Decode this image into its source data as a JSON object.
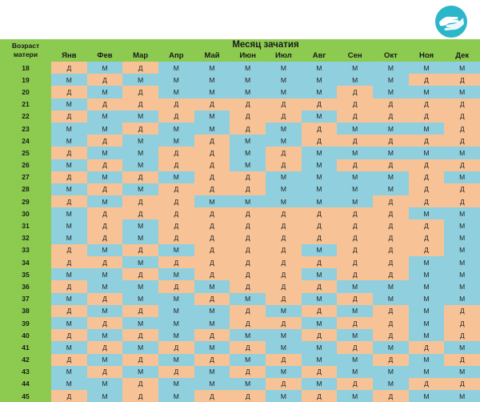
{
  "colors": {
    "header_bg": "#8CCB4F",
    "boy_cell": "#8FCFDE",
    "girl_cell": "#F7C396",
    "logo": "#2CB6C9"
  },
  "logo_icon": "hands-logo-icon",
  "table": {
    "age_header_line1": "Возраст",
    "age_header_line2": "матери",
    "title": "Месяц зачатия",
    "months": [
      "Янв",
      "Фев",
      "Мар",
      "Апр",
      "Май",
      "Июн",
      "Июл",
      "Авг",
      "Сен",
      "Окт",
      "Ноя",
      "Дек"
    ],
    "rows": [
      {
        "age": "18",
        "cells": [
          "Д",
          "М",
          "Д",
          "М",
          "М",
          "М",
          "М",
          "М",
          "М",
          "М",
          "М",
          "М"
        ]
      },
      {
        "age": "19",
        "cells": [
          "М",
          "Д",
          "М",
          "М",
          "М",
          "М",
          "М",
          "М",
          "М",
          "М",
          "Д",
          "Д"
        ]
      },
      {
        "age": "20",
        "cells": [
          "Д",
          "М",
          "Д",
          "М",
          "М",
          "М",
          "М",
          "М",
          "Д",
          "М",
          "М",
          "М"
        ]
      },
      {
        "age": "21",
        "cells": [
          "М",
          "Д",
          "Д",
          "Д",
          "Д",
          "Д",
          "Д",
          "Д",
          "Д",
          "Д",
          "Д",
          "Д"
        ]
      },
      {
        "age": "22",
        "cells": [
          "Д",
          "М",
          "М",
          "Д",
          "М",
          "Д",
          "Д",
          "М",
          "Д",
          "Д",
          "Д",
          "Д"
        ]
      },
      {
        "age": "23",
        "cells": [
          "М",
          "М",
          "Д",
          "М",
          "М",
          "Д",
          "М",
          "Д",
          "М",
          "М",
          "М",
          "Д"
        ]
      },
      {
        "age": "24",
        "cells": [
          "М",
          "Д",
          "М",
          "М",
          "Д",
          "М",
          "М",
          "Д",
          "Д",
          "Д",
          "Д",
          "Д"
        ]
      },
      {
        "age": "25",
        "cells": [
          "Д",
          "М",
          "М",
          "Д",
          "Д",
          "М",
          "Д",
          "М",
          "М",
          "М",
          "М",
          "М"
        ]
      },
      {
        "age": "26",
        "cells": [
          "М",
          "Д",
          "М",
          "Д",
          "Д",
          "М",
          "Д",
          "М",
          "Д",
          "Д",
          "Д",
          "Д"
        ]
      },
      {
        "age": "27",
        "cells": [
          "Д",
          "М",
          "Д",
          "М",
          "Д",
          "Д",
          "М",
          "М",
          "М",
          "М",
          "Д",
          "М"
        ]
      },
      {
        "age": "28",
        "cells": [
          "М",
          "Д",
          "М",
          "Д",
          "Д",
          "Д",
          "М",
          "М",
          "М",
          "М",
          "Д",
          "Д"
        ]
      },
      {
        "age": "29",
        "cells": [
          "Д",
          "М",
          "Д",
          "Д",
          "М",
          "М",
          "М",
          "М",
          "М",
          "Д",
          "Д",
          "Д"
        ]
      },
      {
        "age": "30",
        "cells": [
          "М",
          "Д",
          "Д",
          "Д",
          "Д",
          "Д",
          "Д",
          "Д",
          "Д",
          "Д",
          "М",
          "М"
        ]
      },
      {
        "age": "31",
        "cells": [
          "М",
          "Д",
          "М",
          "Д",
          "Д",
          "Д",
          "Д",
          "Д",
          "Д",
          "Д",
          "Д",
          "М"
        ]
      },
      {
        "age": "32",
        "cells": [
          "М",
          "Д",
          "М",
          "Д",
          "Д",
          "Д",
          "Д",
          "Д",
          "Д",
          "Д",
          "Д",
          "М"
        ]
      },
      {
        "age": "33",
        "cells": [
          "Д",
          "М",
          "Д",
          "М",
          "Д",
          "Д",
          "Д",
          "М",
          "Д",
          "Д",
          "Д",
          "М"
        ]
      },
      {
        "age": "34",
        "cells": [
          "Д",
          "Д",
          "М",
          "Д",
          "Д",
          "Д",
          "Д",
          "Д",
          "Д",
          "Д",
          "М",
          "М"
        ]
      },
      {
        "age": "35",
        "cells": [
          "М",
          "М",
          "Д",
          "М",
          "Д",
          "Д",
          "Д",
          "М",
          "Д",
          "Д",
          "М",
          "М"
        ]
      },
      {
        "age": "36",
        "cells": [
          "Д",
          "М",
          "М",
          "Д",
          "М",
          "Д",
          "Д",
          "Д",
          "М",
          "М",
          "М",
          "М"
        ]
      },
      {
        "age": "37",
        "cells": [
          "М",
          "Д",
          "М",
          "М",
          "Д",
          "М",
          "Д",
          "М",
          "Д",
          "М",
          "М",
          "М"
        ]
      },
      {
        "age": "38",
        "cells": [
          "Д",
          "М",
          "Д",
          "М",
          "М",
          "Д",
          "М",
          "Д",
          "М",
          "Д",
          "М",
          "Д"
        ]
      },
      {
        "age": "39",
        "cells": [
          "М",
          "Д",
          "М",
          "М",
          "М",
          "Д",
          "Д",
          "М",
          "Д",
          "Д",
          "М",
          "Д"
        ]
      },
      {
        "age": "40",
        "cells": [
          "Д",
          "М",
          "Д",
          "М",
          "Д",
          "М",
          "М",
          "Д",
          "М",
          "Д",
          "М",
          "Д"
        ]
      },
      {
        "age": "41",
        "cells": [
          "М",
          "Д",
          "М",
          "Д",
          "М",
          "Д",
          "М",
          "М",
          "Д",
          "М",
          "Д",
          "М"
        ]
      },
      {
        "age": "42",
        "cells": [
          "Д",
          "М",
          "Д",
          "М",
          "Д",
          "М",
          "Д",
          "М",
          "М",
          "Д",
          "М",
          "Д"
        ]
      },
      {
        "age": "43",
        "cells": [
          "М",
          "Д",
          "М",
          "Д",
          "М",
          "Д",
          "М",
          "Д",
          "М",
          "М",
          "М",
          "М"
        ]
      },
      {
        "age": "44",
        "cells": [
          "М",
          "М",
          "Д",
          "М",
          "М",
          "М",
          "Д",
          "М",
          "Д",
          "М",
          "Д",
          "Д"
        ]
      },
      {
        "age": "45",
        "cells": [
          "Д",
          "М",
          "Д",
          "М",
          "Д",
          "Д",
          "М",
          "Д",
          "М",
          "Д",
          "М",
          "М"
        ]
      }
    ]
  }
}
